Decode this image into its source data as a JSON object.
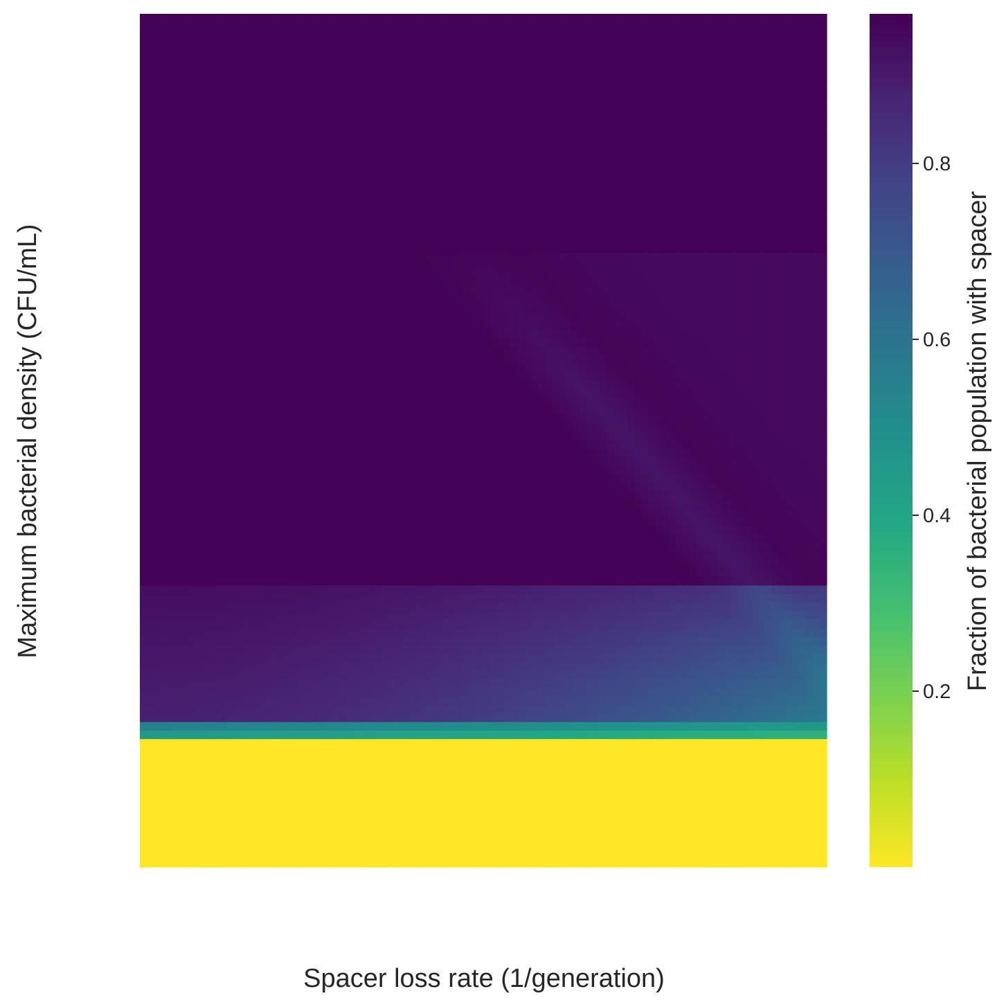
{
  "chart_data": {
    "type": "heatmap",
    "xlabel": "Spacer loss rate (1/generation)",
    "ylabel": "Maximum bacterial density (CFU/mL)",
    "grid": false,
    "colormap": "viridis_r",
    "colorbar": {
      "label": "Fraction of bacterial population with spacer",
      "ticks": [
        0.2,
        0.4,
        0.6,
        0.8
      ],
      "tick_labels": [
        "0.2",
        "0.4",
        "0.6",
        "0.8"
      ],
      "range": [
        0.0,
        0.97
      ]
    },
    "grid_shape": {
      "rows": 100,
      "cols": 100
    },
    "description_of_values": {
      "top_rows_0_to_66": "≈0.96 across all x (dark purple), with a faint diagonal band ≈0.90–0.92 running from x≈50% at row 30 to x≈100% at row 76",
      "rows_67_to_82": "≈0.90–0.93 on the left, decreasing to ≈0.55–0.65 toward the right edge",
      "row_83_to_84": "transition ≈0.6–0.45",
      "rows_85_to_99": "≈0.0 (yellow) across all x"
    }
  },
  "figure": {
    "colors": {
      "background": "#ffffff",
      "text": "#262626"
    }
  }
}
